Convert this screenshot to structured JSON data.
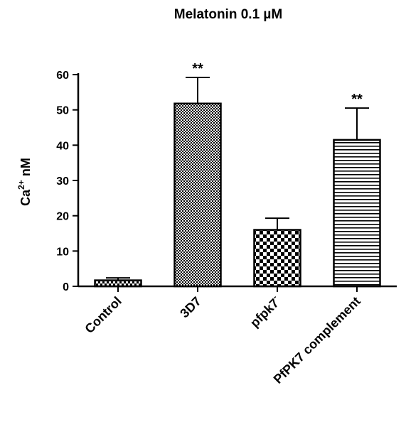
{
  "chart_data": {
    "type": "bar",
    "title": "Melatonin 0.1 µM",
    "ylabel_base": "Ca",
    "ylabel_sup": "2+",
    "ylabel_unit": " nM",
    "ylim": [
      0,
      60
    ],
    "yticks": [
      "0",
      "10",
      "20",
      "30",
      "40",
      "50",
      "60"
    ],
    "categories": [
      {
        "base": "Control",
        "sup": ""
      },
      {
        "base": "3D7",
        "sup": ""
      },
      {
        "base": "pfpk7",
        "sup": "-"
      },
      {
        "base": "PfPK7 complement",
        "sup": ""
      }
    ],
    "values": [
      1.7,
      51.8,
      16.0,
      41.5
    ],
    "errors": [
      0.7,
      7.4,
      3.3,
      9.0
    ],
    "significance": [
      "",
      "**",
      "",
      "**"
    ],
    "patterns": [
      "fine-check",
      "dense-check",
      "coarse-check",
      "horizontal-lines"
    ],
    "grid": false,
    "legend": "none"
  }
}
